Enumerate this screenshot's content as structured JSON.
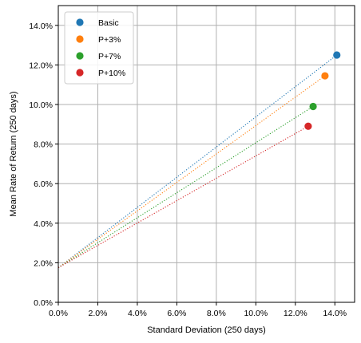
{
  "chart_data": {
    "type": "scatter",
    "title": "",
    "xlabel": "Standard Deviation (250 days)",
    "ylabel": "Mean Rate of Return (250 days)",
    "xlim": [
      0,
      0.15
    ],
    "ylim": [
      0,
      0.15
    ],
    "x_ticks": [
      0,
      0.02,
      0.04,
      0.06,
      0.08,
      0.1,
      0.12,
      0.14
    ],
    "y_ticks": [
      0,
      0.02,
      0.04,
      0.06,
      0.08,
      0.1,
      0.12,
      0.14
    ],
    "x_tick_labels": [
      "0.0%",
      "2.0%",
      "4.0%",
      "6.0%",
      "8.0%",
      "10.0%",
      "12.0%",
      "14.0%"
    ],
    "y_tick_labels": [
      "0.0%",
      "2.0%",
      "4.0%",
      "6.0%",
      "8.0%",
      "10.0%",
      "12.0%",
      "14.0%"
    ],
    "grid": true,
    "legend_position": "top-left",
    "line_origin": {
      "x": 0,
      "y": 0.0175
    },
    "series": [
      {
        "name": "Basic",
        "color": "#1f77b4",
        "x": 0.141,
        "y": 0.125
      },
      {
        "name": "P+3%",
        "color": "#ff7f0e",
        "x": 0.135,
        "y": 0.1145
      },
      {
        "name": "P+7%",
        "color": "#2ca02c",
        "x": 0.129,
        "y": 0.099
      },
      {
        "name": "P+10%",
        "color": "#d62728",
        "x": 0.1265,
        "y": 0.089
      }
    ]
  }
}
